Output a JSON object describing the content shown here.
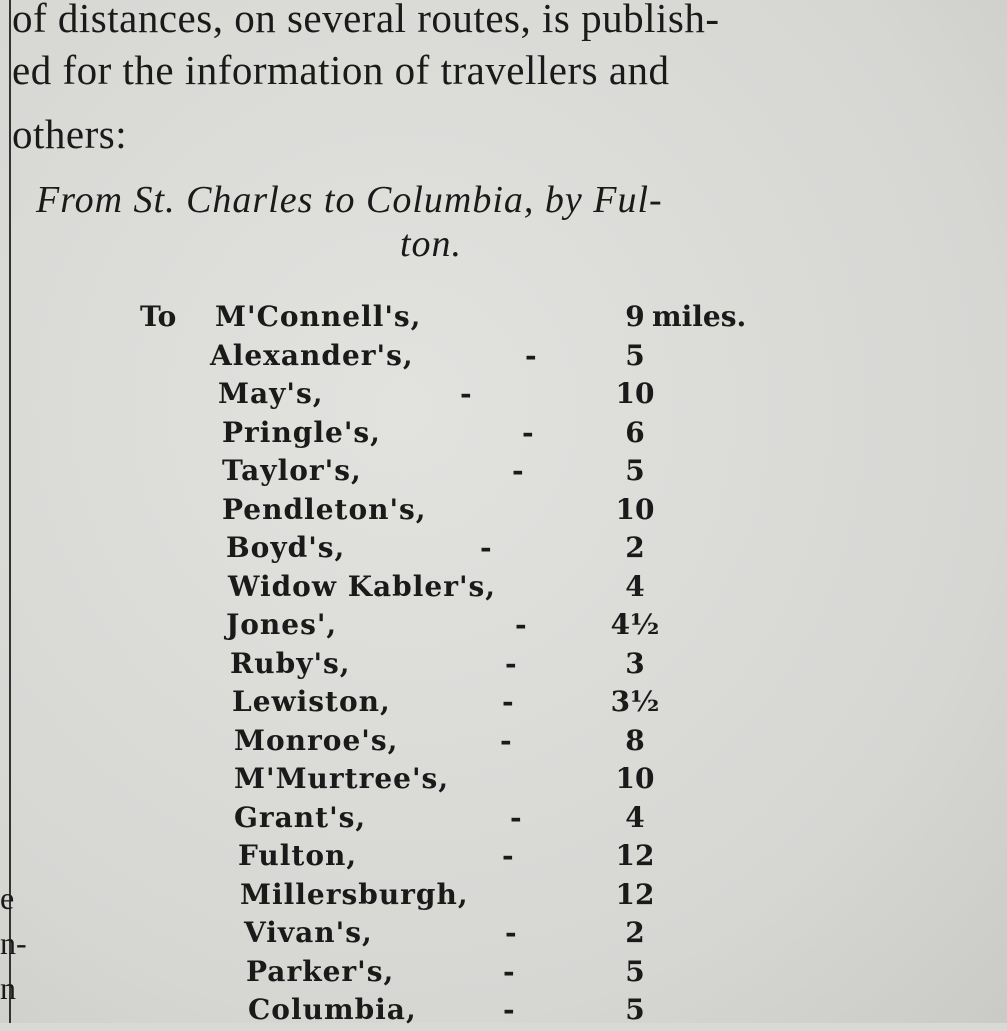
{
  "paragraph_lines": [
    "of distances, on several routes, is publish-",
    "ed for the information of travellers and",
    "others:"
  ],
  "route_heading": {
    "line1": "From St. Charles to Columbia, by Ful-",
    "line2": "ton."
  },
  "table": {
    "prefix": "To",
    "unit": "miles.",
    "rows": [
      {
        "place": "M'Connell's,",
        "miles": "9"
      },
      {
        "place": "Alexander's,",
        "miles": "5"
      },
      {
        "place": "May's,",
        "miles": "10"
      },
      {
        "place": "Pringle's,",
        "miles": "6"
      },
      {
        "place": "Taylor's,",
        "miles": "5"
      },
      {
        "place": "Pendleton's,",
        "miles": "10"
      },
      {
        "place": "Boyd's,",
        "miles": "2"
      },
      {
        "place": "Widow Kabler's,",
        "miles": "4"
      },
      {
        "place": "Jones',",
        "miles": "4½"
      },
      {
        "place": "Ruby's,",
        "miles": "3"
      },
      {
        "place": "Lewiston,",
        "miles": "3½"
      },
      {
        "place": "Monroe's,",
        "miles": "8"
      },
      {
        "place": "M'Murtree's,",
        "miles": "10"
      },
      {
        "place": "Grant's,",
        "miles": "4"
      },
      {
        "place": "Fulton,",
        "miles": "12"
      },
      {
        "place": "Millersburgh,",
        "miles": "12"
      },
      {
        "place": "Vivan's,",
        "miles": "2"
      },
      {
        "place": "Parker's,",
        "miles": "5"
      },
      {
        "place": "Columbia,",
        "miles": "5"
      }
    ]
  },
  "left_column_fragments": [
    "e",
    "n-",
    "n"
  ]
}
